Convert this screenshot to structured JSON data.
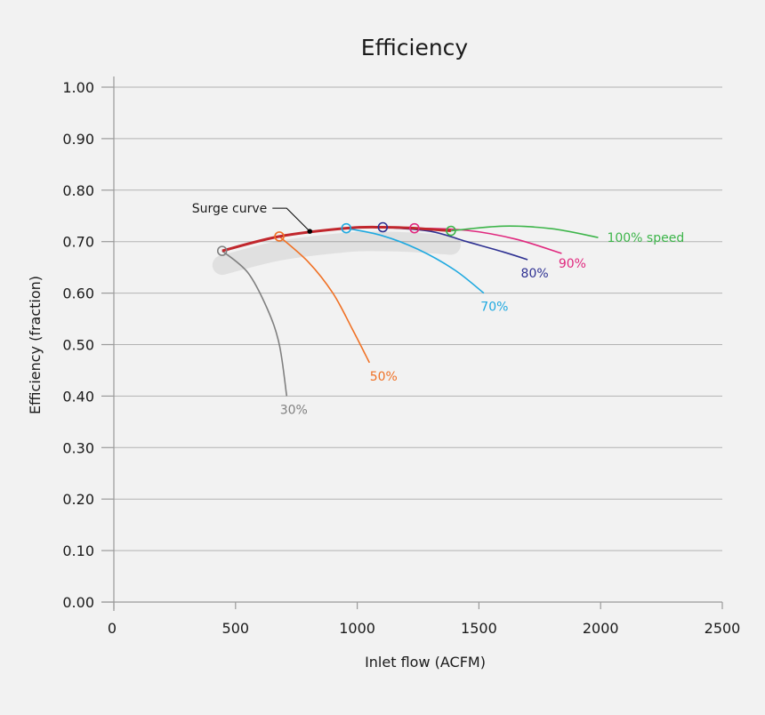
{
  "chart_data": {
    "type": "line",
    "title": "Efficiency",
    "xlabel": "Inlet flow (ACFM)",
    "ylabel": "Efficiency (fraction)",
    "xlim": [
      0,
      2500
    ],
    "ylim": [
      0.0,
      1.0
    ],
    "x_ticks": [
      0,
      500,
      1000,
      1500,
      2000,
      2500
    ],
    "x_tick_labels": [
      "0",
      "500",
      "1000",
      "1500",
      "2000",
      "2500"
    ],
    "y_ticks": [
      0.0,
      0.1,
      0.2,
      0.3,
      0.4,
      0.5,
      0.6,
      0.7,
      0.8,
      0.9,
      1.0
    ],
    "y_tick_labels": [
      "0.00",
      "0.10",
      "0.20",
      "0.30",
      "0.40",
      "0.50",
      "0.60",
      "0.70",
      "0.80",
      "0.90",
      "1.00"
    ],
    "grid": "horizontal",
    "series": [
      {
        "name": "30%",
        "color": "#808080",
        "surge_point": [
          445,
          0.682
        ],
        "points": [
          [
            445,
            0.682
          ],
          [
            550,
            0.64
          ],
          [
            630,
            0.57
          ],
          [
            680,
            0.5
          ],
          [
            710,
            0.4
          ]
        ]
      },
      {
        "name": "50%",
        "color": "#f07125",
        "surge_point": [
          680,
          0.71
        ],
        "points": [
          [
            680,
            0.71
          ],
          [
            800,
            0.66
          ],
          [
            900,
            0.6
          ],
          [
            980,
            0.53
          ],
          [
            1050,
            0.465
          ]
        ]
      },
      {
        "name": "70%",
        "color": "#1fa9e0",
        "surge_point": [
          955,
          0.726
        ],
        "points": [
          [
            955,
            0.726
          ],
          [
            1100,
            0.712
          ],
          [
            1250,
            0.685
          ],
          [
            1400,
            0.645
          ],
          [
            1520,
            0.6
          ]
        ]
      },
      {
        "name": "80%",
        "color": "#2e3192",
        "surge_point": [
          1105,
          0.728
        ],
        "points": [
          [
            1105,
            0.728
          ],
          [
            1300,
            0.72
          ],
          [
            1450,
            0.7
          ],
          [
            1600,
            0.68
          ],
          [
            1700,
            0.665
          ]
        ]
      },
      {
        "name": "90%",
        "color": "#e0287e",
        "surge_point": [
          1235,
          0.726
        ],
        "points": [
          [
            1235,
            0.726
          ],
          [
            1450,
            0.722
          ],
          [
            1650,
            0.705
          ],
          [
            1840,
            0.677
          ]
        ]
      },
      {
        "name": "100% speed",
        "color": "#3db54a",
        "surge_point": [
          1385,
          0.721
        ],
        "points": [
          [
            1385,
            0.721
          ],
          [
            1600,
            0.73
          ],
          [
            1800,
            0.725
          ],
          [
            1990,
            0.708
          ]
        ]
      }
    ],
    "surge_curve": {
      "label": "Surge curve",
      "color": "#c1272d",
      "points": [
        [
          445,
          0.682
        ],
        [
          680,
          0.71
        ],
        [
          955,
          0.726
        ],
        [
          1105,
          0.728
        ],
        [
          1235,
          0.726
        ],
        [
          1385,
          0.721
        ]
      ],
      "marker_point": [
        805,
        0.72
      ]
    }
  }
}
